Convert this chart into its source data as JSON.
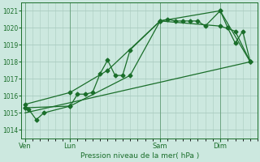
{
  "background_color": "#cce8df",
  "grid_color": "#aaccc0",
  "line_color": "#1a6e2a",
  "marker_style": "D",
  "marker_size": 2.5,
  "title": "Pression niveau de la mer( hPa )",
  "ylabel_ticks": [
    1014,
    1015,
    1016,
    1017,
    1018,
    1019,
    1020,
    1021
  ],
  "ylim": [
    1013.5,
    1021.5
  ],
  "day_labels": [
    "Ven",
    "Lun",
    "Sam",
    "Dim"
  ],
  "day_positions": [
    0,
    6,
    18,
    26
  ],
  "series1_x": [
    0,
    0.5,
    1.5,
    2.5,
    6,
    7,
    8,
    9,
    10,
    11,
    12,
    13,
    14,
    18,
    19,
    20,
    21,
    22,
    23,
    24,
    26,
    27,
    28,
    29,
    30
  ],
  "series1_y": [
    1015.3,
    1015.2,
    1014.6,
    1015.0,
    1015.4,
    1016.1,
    1016.1,
    1016.2,
    1017.3,
    1018.1,
    1017.2,
    1017.2,
    1018.7,
    1020.4,
    1020.5,
    1020.4,
    1020.4,
    1020.4,
    1020.4,
    1020.1,
    1021.0,
    1020.0,
    1019.1,
    1019.8,
    1018.0
  ],
  "series2_x": [
    0,
    6,
    14,
    18,
    26,
    30
  ],
  "series2_y": [
    1015.3,
    1015.4,
    1017.2,
    1020.4,
    1021.0,
    1018.0
  ],
  "series3_x": [
    0,
    30
  ],
  "series3_y": [
    1015.0,
    1018.0
  ],
  "series4_x": [
    0,
    6,
    11,
    18,
    26,
    28,
    30
  ],
  "series4_y": [
    1015.5,
    1016.2,
    1017.5,
    1020.4,
    1020.1,
    1019.8,
    1018.0
  ],
  "xlim": [
    -0.5,
    31
  ]
}
